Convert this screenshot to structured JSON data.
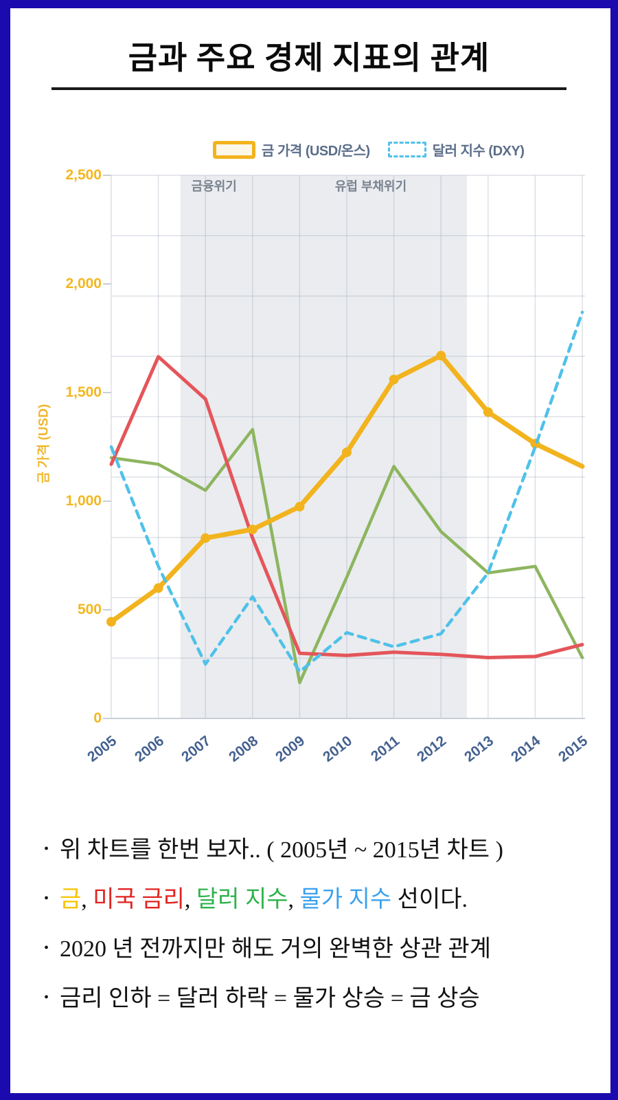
{
  "title": "금과 주요 경제 지표의 관계",
  "legend": {
    "items": [
      {
        "label": "금 가격 (USD/온스)",
        "swatch": "gold-solid-rect",
        "color": "#F2B31E"
      },
      {
        "label": "달러 지수 (DXY)",
        "swatch": "blue-dashed-rect",
        "color": "#4FC1E9"
      }
    ]
  },
  "chart_data": {
    "type": "line",
    "x": [
      2005,
      2006,
      2007,
      2008,
      2009,
      2010,
      2011,
      2012,
      2013,
      2014,
      2015
    ],
    "x_tick_labels": [
      "2005",
      "2006",
      "2007",
      "2008",
      "2009",
      "2010",
      "2011",
      "2012",
      "2013",
      "2014",
      "2015"
    ],
    "y_axis": {
      "title": "금 가격 (USD)",
      "range": [
        0,
        2500
      ],
      "ticks": [
        0,
        500,
        1000,
        1500,
        2000,
        2500
      ],
      "tick_labels": [
        "0",
        "500",
        "1,000",
        "1,500",
        "2,000",
        "2,500"
      ],
      "tick_color": "#F3B71F"
    },
    "grid": "on",
    "legend_position": "top",
    "highlight_band": {
      "from_year": 2006.47,
      "to_year": 2012.55,
      "color": "#EAECEF",
      "annotations": [
        {
          "text": "금융위기",
          "year": 2006.7
        },
        {
          "text": "유럽 부채위기",
          "year": 2009.75
        }
      ]
    },
    "series": [
      {
        "id": "gold-price",
        "label": "금 가격 (USD/온스)",
        "color": "#F2B31E",
        "line": "solid",
        "width": 7,
        "markers": true,
        "values": [
          445,
          600,
          830,
          870,
          975,
          1225,
          1560,
          1670,
          1410,
          1265,
          1160
        ]
      },
      {
        "id": "us-interest-rate",
        "label": "미국 금리",
        "color": "#E4555A",
        "line": "solid",
        "width": 5,
        "markers": false,
        "values": [
          1170,
          1665,
          1470,
          830,
          300,
          290,
          305,
          295,
          280,
          285,
          340
        ]
      },
      {
        "id": "dollar-index-green",
        "label": "달러 지수",
        "color": "#8DB55F",
        "line": "solid",
        "width": 4.5,
        "markers": false,
        "values": [
          1200,
          1170,
          1050,
          1330,
          165,
          650,
          1160,
          860,
          670,
          700,
          280
        ]
      },
      {
        "id": "dxy-dashed",
        "label": "달러 지수 (DXY)",
        "color": "#4FC1E9",
        "line": "dashed",
        "width": 4.5,
        "markers": false,
        "values": [
          1250,
          700,
          250,
          560,
          215,
          395,
          330,
          390,
          670,
          1250,
          1870
        ]
      }
    ]
  },
  "bullets": [
    [
      {
        "text": "위 차트를 한번 보자..  ( 2005년 ~ 2015년 차트 )",
        "color": "#111111"
      }
    ],
    [
      {
        "text": "금",
        "color": "#F5C400"
      },
      {
        "text": ", ",
        "color": "#111111"
      },
      {
        "text": "미국 금리",
        "color": "#E02421"
      },
      {
        "text": ", ",
        "color": "#111111"
      },
      {
        "text": "달러 지수",
        "color": "#2FB24C"
      },
      {
        "text": ", ",
        "color": "#111111"
      },
      {
        "text": "물가 지수",
        "color": "#3BA1EE"
      },
      {
        "text": "  선이다.",
        "color": "#111111"
      }
    ],
    [
      {
        "text": "2020 년 전까지만 해도 거의 완벽한 상관 관계",
        "color": "#111111"
      }
    ],
    [
      {
        "text": "금리 인하 =  달러 하락 = 물가 상승 = 금 상승",
        "color": "#111111"
      }
    ]
  ],
  "colors": {
    "page_border": "#1b0aad",
    "grid_line": "#A5AFC0",
    "axis_line": "#C9CED6",
    "annotation_text": "#79828F",
    "x_tick_text": "#44618F",
    "legend_text": "#5b6d89"
  }
}
